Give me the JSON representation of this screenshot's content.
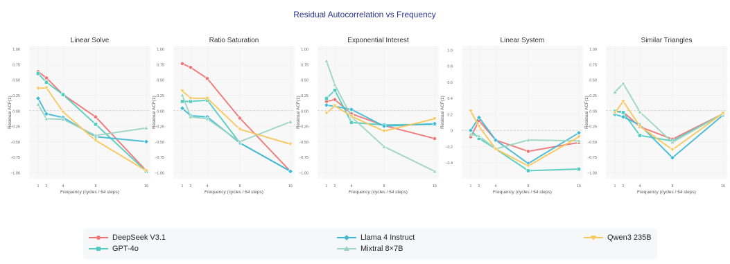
{
  "chart_data": [
    {
      "type": "line",
      "title": "Linear Solve",
      "xlabel": "Frequency (cycles / 64 steps)",
      "ylabel": "Residual ACF(1)",
      "x": [
        1,
        2,
        4,
        8,
        16
      ],
      "xticks": [
        "1",
        "2",
        "4",
        "8",
        "16"
      ],
      "ylim": [
        -1.1,
        1.05
      ],
      "yticks": [
        1.0,
        0.75,
        0.5,
        0.25,
        0.0,
        -0.25,
        -0.5,
        -0.75,
        -1.0
      ],
      "ytick_labels": [
        "1.00",
        "0.75",
        "0.50",
        "0.25",
        "0.00",
        "−0.25",
        "−0.50",
        "−0.75",
        "−1.00"
      ],
      "series": [
        {
          "name": "DeepSeek V3.1",
          "values": [
            0.63,
            0.53,
            0.26,
            -0.1,
            -0.97
          ]
        },
        {
          "name": "GPT-4o",
          "values": [
            0.6,
            0.46,
            0.26,
            -0.22,
            -0.98
          ]
        },
        {
          "name": "Llama 4 Instruct",
          "values": [
            0.2,
            -0.05,
            -0.11,
            -0.42,
            -0.5
          ]
        },
        {
          "name": "Mixtral 8×7B",
          "values": [
            0.1,
            -0.13,
            -0.14,
            -0.4,
            -0.28
          ]
        },
        {
          "name": "Qwen3 235B",
          "values": [
            0.36,
            0.37,
            -0.02,
            -0.48,
            -0.97
          ]
        }
      ]
    },
    {
      "type": "line",
      "title": "Ratio Saturation",
      "xlabel": "Frequency (cycles / 64 steps)",
      "ylabel": "Residual ACF(1)",
      "x": [
        1,
        2,
        4,
        8,
        16
      ],
      "xticks": [
        "1",
        "2",
        "4",
        "8",
        "16"
      ],
      "ylim": [
        -1.1,
        1.05
      ],
      "yticks": [
        1.0,
        0.75,
        0.5,
        0.25,
        0.0,
        -0.25,
        -0.5,
        -0.75,
        -1.0
      ],
      "ytick_labels": [
        "1.00",
        "0.75",
        "0.50",
        "0.25",
        "0.00",
        "−0.25",
        "−0.50",
        "−0.75",
        "−1.00"
      ],
      "series": [
        {
          "name": "DeepSeek V3.1",
          "values": [
            0.76,
            0.7,
            0.52,
            -0.12,
            -0.98
          ]
        },
        {
          "name": "GPT-4o",
          "values": [
            0.15,
            0.15,
            0.17,
            -0.52,
            -0.98
          ]
        },
        {
          "name": "Llama 4 Instruct",
          "values": [
            0.04,
            -0.08,
            -0.1,
            -0.52,
            -0.98
          ]
        },
        {
          "name": "Mixtral 8×7B",
          "values": [
            0.25,
            -0.1,
            -0.13,
            -0.5,
            -0.18
          ]
        },
        {
          "name": "Qwen3 235B",
          "values": [
            0.32,
            0.2,
            0.2,
            -0.3,
            -0.54
          ]
        }
      ]
    },
    {
      "type": "line",
      "title": "Exponential Interest",
      "xlabel": "Frequency (cycles / 64 steps)",
      "ylabel": "Residual ACF(1)",
      "x": [
        1,
        2,
        4,
        8,
        16
      ],
      "xticks": [
        "1",
        "2",
        "4",
        "8",
        "16"
      ],
      "ylim": [
        -1.1,
        1.05
      ],
      "yticks": [
        1.0,
        0.75,
        0.5,
        0.25,
        0.0,
        -0.25,
        -0.5,
        -0.75,
        -1.0
      ],
      "ytick_labels": [
        "1.00",
        "0.75",
        "0.50",
        "0.25",
        "0.00",
        "−0.25",
        "−0.50",
        "−0.75",
        "−1.00"
      ],
      "series": [
        {
          "name": "DeepSeek V3.1",
          "values": [
            0.15,
            0.18,
            -0.05,
            -0.24,
            -0.45
          ]
        },
        {
          "name": "GPT-4o",
          "values": [
            0.2,
            0.33,
            -0.19,
            -0.23,
            -0.22
          ]
        },
        {
          "name": "Llama 4 Instruct",
          "values": [
            0.09,
            0.07,
            0.02,
            -0.25,
            -0.21
          ]
        },
        {
          "name": "Mixtral 8×7B",
          "values": [
            0.8,
            0.42,
            -0.1,
            -0.58,
            -0.98
          ]
        },
        {
          "name": "Qwen3 235B",
          "values": [
            -0.04,
            0.08,
            -0.09,
            -0.33,
            -0.13
          ]
        }
      ]
    },
    {
      "type": "line",
      "title": "Linear System",
      "xlabel": "Frequency (cycles / 64 steps)",
      "ylabel": "Residual ACF(1)",
      "x": [
        1,
        2,
        4,
        8,
        16
      ],
      "xticks": [
        "1",
        "2",
        "4",
        "8",
        "16"
      ],
      "ylim": [
        -0.6,
        1.05
      ],
      "yticks": [
        1.0,
        0.8,
        0.6,
        0.4,
        0.2,
        0.0,
        -0.2,
        -0.4
      ],
      "ytick_labels": [
        "1.0",
        "0.8",
        "0.6",
        "0.4",
        "0.2",
        "0",
        "−0.2",
        "−0.4"
      ],
      "series": [
        {
          "name": "DeepSeek V3.1",
          "values": [
            -0.08,
            0.12,
            -0.12,
            -0.26,
            -0.15
          ]
        },
        {
          "name": "GPT-4o",
          "values": [
            0.0,
            -0.1,
            -0.23,
            -0.5,
            -0.48
          ]
        },
        {
          "name": "Llama 4 Instruct",
          "values": [
            0.0,
            0.16,
            -0.12,
            -0.41,
            -0.03
          ]
        },
        {
          "name": "Mixtral 8×7B",
          "values": [
            -0.05,
            -0.07,
            -0.23,
            -0.12,
            -0.13
          ]
        },
        {
          "name": "Qwen3 235B",
          "values": [
            0.24,
            0.05,
            -0.23,
            -0.44,
            -0.08
          ]
        }
      ]
    },
    {
      "type": "line",
      "title": "Similar Triangles",
      "xlabel": "Frequency (cycles / 64 steps)",
      "ylabel": "Residual ACF(1)",
      "x": [
        1,
        2,
        4,
        8,
        16
      ],
      "xticks": [
        "1",
        "2",
        "4",
        "8",
        "16"
      ],
      "ylim": [
        -1.1,
        1.05
      ],
      "yticks": [
        1.0,
        0.75,
        0.5,
        0.25,
        0.0,
        -0.25,
        -0.5,
        -0.75,
        -1.0
      ],
      "ytick_labels": [
        "1.00",
        "0.75",
        "0.50",
        "0.25",
        "0.00",
        "−0.25",
        "−0.50",
        "−0.75",
        "−1.00"
      ],
      "series": [
        {
          "name": "DeepSeek V3.1",
          "values": [
            -0.01,
            -0.02,
            -0.26,
            -0.46,
            -0.05
          ]
        },
        {
          "name": "GPT-4o",
          "values": [
            -0.01,
            -0.03,
            -0.4,
            -0.49,
            -0.05
          ]
        },
        {
          "name": "Llama 4 Instruct",
          "values": [
            -0.06,
            -0.1,
            -0.23,
            -0.76,
            -0.07
          ]
        },
        {
          "name": "Mixtral 8×7B",
          "values": [
            0.3,
            0.44,
            -0.02,
            -0.51,
            -0.05
          ]
        },
        {
          "name": "Qwen3 235B",
          "values": [
            -0.03,
            0.15,
            -0.25,
            -0.63,
            -0.04
          ]
        }
      ]
    }
  ],
  "figure_title": "Residual Autocorrelation vs Frequency",
  "legend": [
    {
      "name": "DeepSeek V3.1",
      "color": "#f07373",
      "marker": "circle"
    },
    {
      "name": "GPT-4o",
      "color": "#52cbbf",
      "marker": "square"
    },
    {
      "name": "Llama 4 Instruct",
      "color": "#3fb8d2",
      "marker": "diamond"
    },
    {
      "name": "Mixtral 8×7B",
      "color": "#9ad4bf",
      "marker": "triangle-up"
    },
    {
      "name": "Qwen3 235B",
      "color": "#f7c658",
      "marker": "triangle-down"
    }
  ],
  "grid": true,
  "zero_line": "dashed",
  "legend_placement": "bottom",
  "colors": {
    "title": "#2b3590",
    "axis_text": "#555555",
    "panel_bg": "#f8f8f8"
  }
}
